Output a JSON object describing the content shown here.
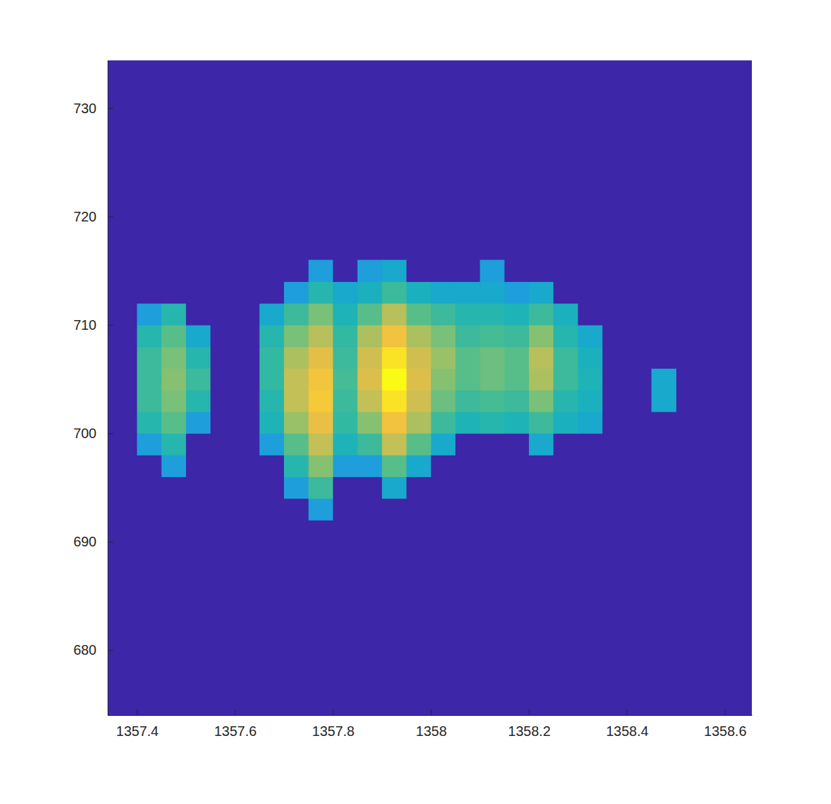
{
  "chart_data": {
    "type": "heatmap",
    "xlim": [
      1357.34,
      1358.655
    ],
    "ylim": [
      674,
      734.4
    ],
    "xticks": [
      1357.4,
      1357.6,
      1357.8,
      1358,
      1358.2,
      1358.4,
      1358.6
    ],
    "yticks": [
      680,
      690,
      700,
      710,
      720,
      730
    ],
    "color_range": [
      0,
      1
    ],
    "x": [
      1357.425,
      1357.475,
      1357.525,
      1357.575,
      1357.625,
      1357.675,
      1357.725,
      1357.775,
      1357.825,
      1357.875,
      1357.925,
      1357.975,
      1358.025,
      1358.075,
      1358.125,
      1358.175,
      1358.225,
      1358.275,
      1358.325,
      1358.375,
      1358.425,
      1358.475
    ],
    "y": [
      693,
      695,
      697,
      699,
      701,
      703,
      705,
      707,
      709,
      711,
      713,
      715
    ],
    "z": [
      [
        0,
        0,
        0,
        0,
        0,
        0,
        0,
        0.3,
        0,
        0,
        0,
        0,
        0,
        0,
        0,
        0,
        0,
        0,
        0,
        0,
        0,
        0
      ],
      [
        0,
        0,
        0,
        0,
        0,
        0,
        0.3,
        0.5,
        0,
        0,
        0.35,
        0,
        0,
        0,
        0,
        0,
        0,
        0,
        0,
        0,
        0,
        0
      ],
      [
        0,
        0.3,
        0,
        0,
        0,
        0,
        0.45,
        0.62,
        0.3,
        0.3,
        0.55,
        0.35,
        0,
        0,
        0,
        0,
        0,
        0,
        0,
        0,
        0,
        0
      ],
      [
        0.3,
        0.45,
        0,
        0,
        0,
        0.3,
        0.55,
        0.72,
        0.42,
        0.5,
        0.72,
        0.55,
        0.35,
        0,
        0,
        0,
        0.35,
        0,
        0,
        0,
        0,
        0
      ],
      [
        0.45,
        0.55,
        0.3,
        0,
        0,
        0.42,
        0.65,
        0.82,
        0.48,
        0.62,
        0.85,
        0.68,
        0.5,
        0.42,
        0.45,
        0.42,
        0.5,
        0.4,
        0.35,
        0,
        0,
        0
      ],
      [
        0.5,
        0.6,
        0.45,
        0,
        0,
        0.45,
        0.72,
        0.88,
        0.5,
        0.72,
        0.95,
        0.75,
        0.58,
        0.5,
        0.52,
        0.5,
        0.6,
        0.45,
        0.4,
        0,
        0,
        0.35
      ],
      [
        0.5,
        0.62,
        0.5,
        0,
        0,
        0.48,
        0.72,
        0.86,
        0.52,
        0.78,
        1,
        0.78,
        0.62,
        0.55,
        0.58,
        0.55,
        0.68,
        0.5,
        0.42,
        0,
        0,
        0.35
      ],
      [
        0.5,
        0.6,
        0.45,
        0,
        0,
        0.48,
        0.68,
        0.8,
        0.5,
        0.75,
        0.95,
        0.75,
        0.65,
        0.55,
        0.58,
        0.55,
        0.7,
        0.5,
        0.4,
        0,
        0,
        0
      ],
      [
        0.45,
        0.55,
        0.35,
        0,
        0,
        0.45,
        0.6,
        0.7,
        0.48,
        0.68,
        0.85,
        0.68,
        0.6,
        0.5,
        0.52,
        0.5,
        0.62,
        0.45,
        0.35,
        0,
        0,
        0
      ],
      [
        0.3,
        0.45,
        0,
        0,
        0,
        0.35,
        0.5,
        0.6,
        0.42,
        0.55,
        0.7,
        0.55,
        0.5,
        0.45,
        0.45,
        0.42,
        0.5,
        0.4,
        0,
        0,
        0,
        0
      ],
      [
        0,
        0,
        0,
        0,
        0,
        0,
        0.3,
        0.45,
        0.35,
        0.4,
        0.5,
        0.4,
        0.35,
        0.35,
        0.35,
        0.3,
        0.35,
        0,
        0,
        0,
        0,
        0
      ],
      [
        0,
        0,
        0,
        0,
        0,
        0,
        0,
        0.3,
        0,
        0.3,
        0.35,
        0,
        0,
        0,
        0.3,
        0,
        0,
        0,
        0,
        0,
        0,
        0
      ]
    ]
  }
}
